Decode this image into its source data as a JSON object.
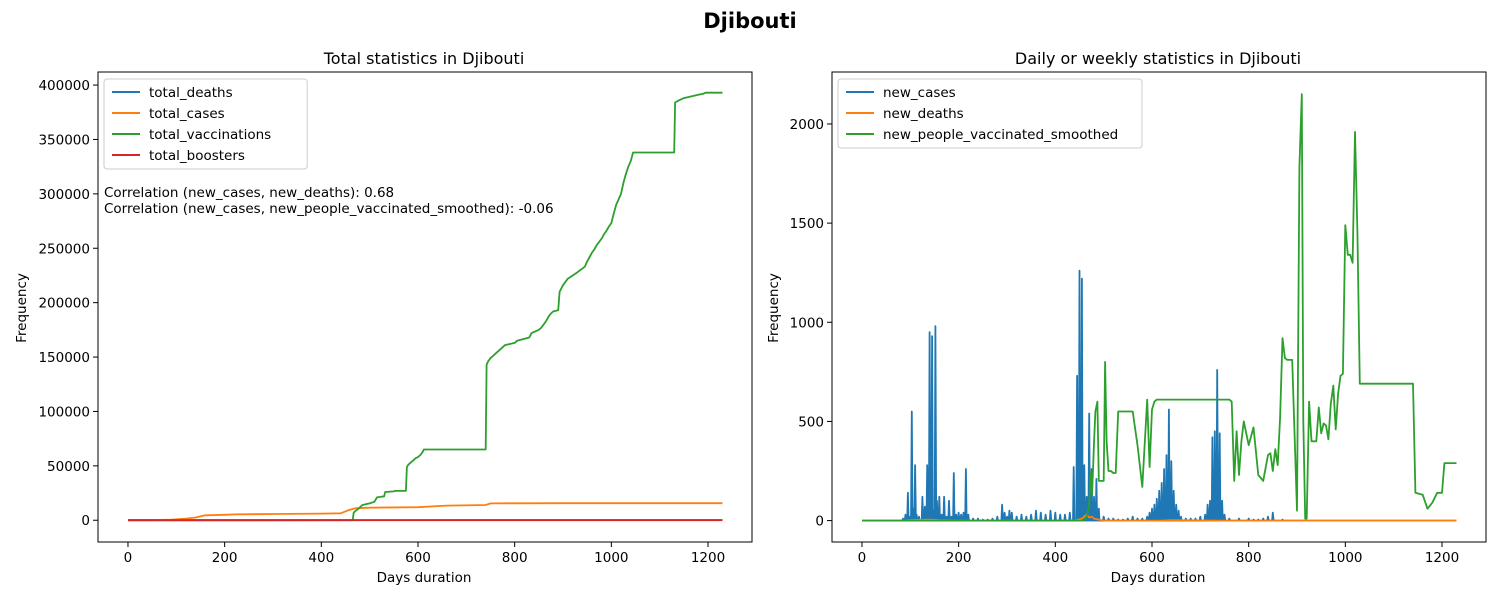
{
  "suptitle": "Djibouti",
  "chart_data": [
    {
      "type": "line",
      "title": "Total statistics in Djibouti",
      "xlabel": "Days duration",
      "ylabel": "Frequency",
      "xlim": [
        -62,
        1291
      ],
      "ylim": [
        -20000,
        412000
      ],
      "xticks": [
        0,
        200,
        400,
        600,
        800,
        1000,
        1200
      ],
      "yticks": [
        0,
        50000,
        100000,
        150000,
        200000,
        250000,
        300000,
        350000,
        400000
      ],
      "legend_position": "upper-left",
      "annotations": [
        "Correlation (new_cases, new_deaths): 0.68",
        "Correlation (new_cases, new_people_vaccinated_smoothed): -0.06"
      ],
      "series": [
        {
          "name": "total_deaths",
          "color": "#1f77b4",
          "x": [
            0,
            60,
            120,
            160,
            250,
            450,
            500,
            750,
            1230
          ],
          "y": [
            0,
            20,
            50,
            60,
            65,
            120,
            170,
            188,
            189
          ]
        },
        {
          "name": "total_cases",
          "color": "#ff7f0e",
          "x": [
            0,
            50,
            90,
            120,
            140,
            160,
            200,
            220,
            300,
            400,
            440,
            455,
            470,
            500,
            600,
            640,
            660,
            740,
            750,
            800,
            900,
            1000,
            1230
          ],
          "y": [
            0,
            0,
            500,
            1500,
            2500,
            4500,
            5000,
            5400,
            5700,
            6100,
            6400,
            9000,
            11000,
            11500,
            12000,
            13000,
            13500,
            14000,
            15500,
            15600,
            15650,
            15690,
            15700
          ]
        },
        {
          "name": "total_vaccinations",
          "color": "#2ca02c",
          "x": [
            0,
            465,
            467,
            472,
            475,
            480,
            485,
            490,
            495,
            500,
            510,
            515,
            530,
            532,
            550,
            552,
            575,
            577,
            580,
            585,
            590,
            595,
            600,
            605,
            610,
            612,
            620,
            740,
            742,
            745,
            750,
            755,
            760,
            770,
            780,
            800,
            805,
            830,
            835,
            850,
            855,
            860,
            865,
            870,
            875,
            880,
            890,
            893,
            900,
            910,
            930,
            945,
            950,
            955,
            960,
            965,
            970,
            975,
            980,
            985,
            990,
            995,
            1000,
            1005,
            1010,
            1020,
            1025,
            1030,
            1035,
            1040,
            1045,
            1050,
            1055,
            1060,
            1065,
            1067,
            1100,
            1130,
            1132,
            1140,
            1150,
            1160,
            1170,
            1180,
            1190,
            1195,
            1200,
            1230
          ],
          "y": [
            0,
            0,
            7000,
            9000,
            10000,
            12000,
            14000,
            14500,
            15000,
            15500,
            17000,
            21000,
            22000,
            26000,
            26500,
            27000,
            27000,
            49000,
            51000,
            53000,
            55000,
            57000,
            58000,
            60000,
            63000,
            65000,
            65000,
            65000,
            143000,
            146000,
            149000,
            151000,
            153000,
            157000,
            161000,
            163000,
            165000,
            168000,
            172000,
            175000,
            177000,
            180000,
            183000,
            187000,
            190000,
            192000,
            193000,
            210000,
            216000,
            222000,
            228000,
            233000,
            238000,
            242000,
            246000,
            249000,
            253000,
            256000,
            259000,
            263000,
            266000,
            270000,
            273000,
            282000,
            290000,
            300000,
            310000,
            318000,
            325000,
            330000,
            338000,
            338000,
            338000,
            338000,
            338000,
            338000,
            338000,
            338000,
            384000,
            386000,
            388000,
            389000,
            390000,
            391000,
            392000,
            393000,
            393000,
            393000
          ]
        },
        {
          "name": "total_boosters",
          "color": "#d62728",
          "x": [
            0,
            1230
          ],
          "y": [
            0,
            0
          ]
        }
      ]
    },
    {
      "type": "line",
      "title": "Daily or weekly statistics in Djibouti",
      "xlabel": "Days duration",
      "ylabel": "Frequency",
      "xlim": [
        -62,
        1291
      ],
      "ylim": [
        -108,
        2262
      ],
      "xticks": [
        0,
        200,
        400,
        600,
        800,
        1000,
        1200
      ],
      "yticks": [
        0,
        500,
        1000,
        1500,
        2000
      ],
      "legend_position": "upper-left",
      "series": [
        {
          "name": "new_cases",
          "color": "#1f77b4",
          "spikes": [
            [
              85,
              10
            ],
            [
              90,
              30
            ],
            [
              95,
              140
            ],
            [
              100,
              20
            ],
            [
              103,
              550
            ],
            [
              106,
              60
            ],
            [
              110,
              280
            ],
            [
              113,
              30
            ],
            [
              118,
              20
            ],
            [
              125,
              120
            ],
            [
              130,
              70
            ],
            [
              135,
              280
            ],
            [
              140,
              950
            ],
            [
              145,
              930
            ],
            [
              148,
              50
            ],
            [
              152,
              980
            ],
            [
              155,
              100
            ],
            [
              160,
              120
            ],
            [
              165,
              30
            ],
            [
              170,
              120
            ],
            [
              175,
              20
            ],
            [
              180,
              100
            ],
            [
              185,
              20
            ],
            [
              190,
              240
            ],
            [
              195,
              30
            ],
            [
              200,
              40
            ],
            [
              205,
              30
            ],
            [
              210,
              40
            ],
            [
              215,
              260
            ],
            [
              220,
              30
            ],
            [
              230,
              10
            ],
            [
              240,
              10
            ],
            [
              250,
              5
            ],
            [
              260,
              5
            ],
            [
              270,
              10
            ],
            [
              280,
              20
            ],
            [
              290,
              80
            ],
            [
              295,
              40
            ],
            [
              300,
              20
            ],
            [
              305,
              50
            ],
            [
              310,
              40
            ],
            [
              320,
              20
            ],
            [
              330,
              30
            ],
            [
              340,
              20
            ],
            [
              350,
              30
            ],
            [
              360,
              50
            ],
            [
              370,
              40
            ],
            [
              380,
              30
            ],
            [
              390,
              50
            ],
            [
              400,
              40
            ],
            [
              410,
              30
            ],
            [
              420,
              30
            ],
            [
              430,
              40
            ],
            [
              438,
              270
            ],
            [
              445,
              730
            ],
            [
              450,
              1260
            ],
            [
              455,
              1220
            ],
            [
              460,
              280
            ],
            [
              465,
              120
            ],
            [
              470,
              540
            ],
            [
              475,
              260
            ],
            [
              480,
              120
            ],
            [
              485,
              210
            ],
            [
              490,
              60
            ],
            [
              500,
              20
            ],
            [
              510,
              10
            ],
            [
              520,
              10
            ],
            [
              530,
              5
            ],
            [
              540,
              5
            ],
            [
              550,
              10
            ],
            [
              560,
              20
            ],
            [
              570,
              10
            ],
            [
              580,
              10
            ],
            [
              590,
              20
            ],
            [
              595,
              40
            ],
            [
              600,
              60
            ],
            [
              605,
              80
            ],
            [
              610,
              110
            ],
            [
              615,
              150
            ],
            [
              620,
              190
            ],
            [
              625,
              260
            ],
            [
              630,
              330
            ],
            [
              635,
              560
            ],
            [
              640,
              300
            ],
            [
              645,
              150
            ],
            [
              650,
              80
            ],
            [
              655,
              50
            ],
            [
              660,
              20
            ],
            [
              670,
              10
            ],
            [
              680,
              10
            ],
            [
              690,
              10
            ],
            [
              700,
              20
            ],
            [
              710,
              30
            ],
            [
              715,
              80
            ],
            [
              720,
              100
            ],
            [
              725,
              420
            ],
            [
              730,
              450
            ],
            [
              735,
              760
            ],
            [
              740,
              440
            ],
            [
              745,
              100
            ],
            [
              750,
              30
            ],
            [
              760,
              10
            ],
            [
              780,
              10
            ],
            [
              800,
              10
            ],
            [
              810,
              5
            ],
            [
              820,
              5
            ],
            [
              830,
              10
            ],
            [
              840,
              20
            ],
            [
              850,
              40
            ],
            [
              870,
              5
            ]
          ]
        },
        {
          "name": "new_deaths",
          "color": "#ff7f0e",
          "x": [
            0,
            85,
            100,
            140,
            160,
            200,
            440,
            455,
            460,
            465,
            470,
            475,
            480,
            490,
            500,
            620,
            640,
            740,
            760,
            1230
          ],
          "y": [
            0,
            0,
            2,
            5,
            2,
            0,
            0,
            10,
            20,
            30,
            15,
            20,
            10,
            5,
            0,
            0,
            2,
            0,
            0,
            0
          ]
        },
        {
          "name": "new_people_vaccinated_smoothed",
          "color": "#2ca02c",
          "x": [
            0,
            460,
            465,
            470,
            473,
            476,
            480,
            483,
            487,
            490,
            500,
            503,
            506,
            510,
            515,
            520,
            525,
            530,
            540,
            550,
            560,
            570,
            580,
            590,
            595,
            600,
            605,
            610,
            620,
            630,
            640,
            650,
            700,
            760,
            765,
            770,
            775,
            780,
            785,
            790,
            800,
            810,
            820,
            830,
            840,
            845,
            850,
            855,
            860,
            865,
            870,
            875,
            880,
            890,
            900,
            905,
            910,
            913,
            917,
            920,
            925,
            930,
            935,
            940,
            945,
            950,
            955,
            960,
            965,
            970,
            975,
            980,
            985,
            990,
            995,
            1000,
            1005,
            1010,
            1015,
            1020,
            1025,
            1030,
            1035,
            1040,
            1045,
            1050,
            1055,
            1060,
            1065,
            1070,
            1100,
            1140,
            1145,
            1160,
            1170,
            1180,
            1190,
            1200,
            1205,
            1230
          ],
          "y": [
            0,
            0,
            20,
            80,
            240,
            130,
            390,
            550,
            600,
            200,
            200,
            800,
            400,
            250,
            250,
            240,
            240,
            550,
            550,
            550,
            550,
            380,
            170,
            610,
            270,
            560,
            600,
            610,
            610,
            610,
            610,
            610,
            610,
            610,
            600,
            200,
            450,
            230,
            400,
            500,
            380,
            470,
            230,
            200,
            330,
            340,
            250,
            360,
            280,
            520,
            920,
            820,
            810,
            810,
            50,
            1780,
            2150,
            500,
            10,
            10,
            600,
            400,
            400,
            400,
            570,
            440,
            490,
            480,
            410,
            590,
            680,
            460,
            640,
            730,
            740,
            1490,
            1340,
            1340,
            1300,
            1960,
            1460,
            690,
            690,
            690,
            690,
            690,
            690,
            690,
            690,
            690,
            690,
            690,
            140,
            130,
            60,
            90,
            140,
            140,
            290,
            290
          ]
        }
      ]
    }
  ]
}
